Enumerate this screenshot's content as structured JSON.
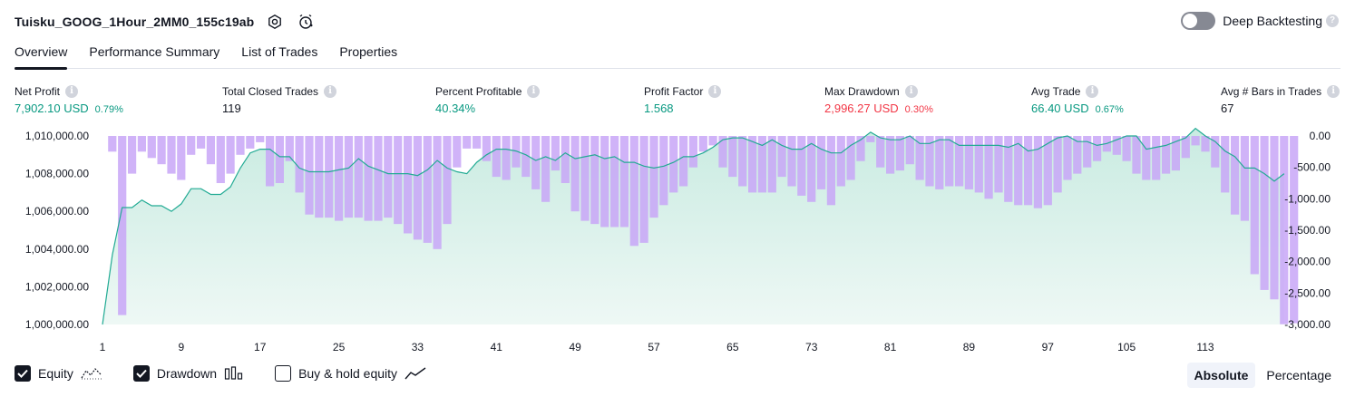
{
  "header": {
    "title": "Tuisku_GOOG_1Hour_2MM0_155c19ab",
    "icons": [
      "settings-icon",
      "alert-clock-icon"
    ]
  },
  "deep_backtesting": {
    "label": "Deep Backtesting",
    "enabled": false,
    "help": "?"
  },
  "tabs": [
    {
      "label": "Overview",
      "active": true
    },
    {
      "label": "Performance Summary",
      "active": false
    },
    {
      "label": "List of Trades",
      "active": false
    },
    {
      "label": "Properties",
      "active": false
    }
  ],
  "metrics": {
    "net_profit": {
      "label": "Net Profit",
      "value": "7,902.10 USD",
      "pct": "0.79%"
    },
    "total_closed_trades": {
      "label": "Total Closed Trades",
      "value": "119"
    },
    "percent_profitable": {
      "label": "Percent Profitable",
      "value": "40.34%"
    },
    "profit_factor": {
      "label": "Profit Factor",
      "value": "1.568"
    },
    "max_drawdown": {
      "label": "Max Drawdown",
      "value": "2,996.27 USD",
      "pct": "0.30%"
    },
    "avg_trade": {
      "label": "Avg Trade",
      "value": "66.40 USD",
      "pct": "0.67%"
    },
    "avg_bars": {
      "label": "Avg # Bars in Trades",
      "value": "67"
    },
    "info_glyph": "i"
  },
  "colors": {
    "equity_line": "#22ab94",
    "equity_fill_top": "#c9ebe1",
    "drawdown_bar": "#c8a6f7",
    "positive": "#089981",
    "negative": "#f23645"
  },
  "chart_data": {
    "type": "area",
    "x_ticks": [
      "1",
      "9",
      "17",
      "25",
      "33",
      "41",
      "49",
      "57",
      "65",
      "73",
      "81",
      "89",
      "97",
      "105",
      "113"
    ],
    "x_range": [
      1,
      120
    ],
    "left_axis": {
      "ticks": [
        "1,010,000.00",
        "1,008,000.00",
        "1,006,000.00",
        "1,004,000.00",
        "1,002,000.00",
        "1,000,000.00"
      ],
      "range": [
        1000000,
        1010000
      ]
    },
    "right_axis": {
      "ticks": [
        "0.00",
        "-500.00",
        "-1,000.00",
        "-1,500.00",
        "-2,000.00",
        "-2,500.00",
        "-3,000.00"
      ],
      "range": [
        -3000,
        0
      ]
    },
    "series": [
      {
        "name": "Equity",
        "type": "area",
        "values": [
          1000000,
          1003700,
          1006200,
          1006200,
          1006600,
          1006300,
          1006300,
          1006000,
          1006400,
          1007200,
          1007200,
          1006900,
          1006900,
          1007300,
          1008300,
          1009100,
          1009300,
          1009300,
          1008900,
          1008900,
          1008300,
          1008100,
          1008100,
          1008100,
          1008200,
          1008300,
          1008800,
          1008400,
          1008200,
          1008000,
          1008000,
          1008000,
          1007900,
          1008200,
          1008700,
          1008300,
          1008100,
          1008000,
          1008600,
          1009000,
          1009300,
          1009300,
          1009200,
          1009000,
          1008700,
          1008900,
          1008700,
          1009100,
          1008800,
          1008900,
          1009000,
          1008800,
          1008900,
          1008600,
          1008600,
          1008400,
          1008300,
          1008400,
          1008600,
          1008900,
          1008900,
          1009100,
          1009400,
          1009800,
          1009900,
          1009900,
          1009700,
          1009500,
          1009800,
          1009500,
          1009300,
          1009300,
          1009600,
          1009300,
          1009100,
          1009100,
          1009500,
          1009800,
          1010200,
          1009900,
          1009800,
          1009800,
          1010000,
          1009600,
          1009600,
          1009800,
          1009800,
          1009500,
          1009500,
          1009500,
          1009500,
          1009500,
          1009400,
          1009600,
          1009200,
          1009300,
          1009600,
          1009900,
          1010000,
          1009700,
          1009700,
          1009500,
          1009600,
          1009800,
          1010000,
          1010000,
          1009300,
          1009400,
          1009500,
          1009700,
          1009900,
          1010400,
          1010000,
          1009700,
          1009200,
          1008900,
          1008300,
          1008300,
          1008000,
          1007600,
          1008000
        ]
      },
      {
        "name": "Drawdown",
        "type": "bar",
        "values": [
          -250,
          -2850,
          -600,
          -250,
          -350,
          -450,
          -600,
          -700,
          -300,
          -200,
          -450,
          -750,
          -600,
          -300,
          -200,
          -100,
          -800,
          -750,
          -400,
          -900,
          -1250,
          -1300,
          -1300,
          -1350,
          -1300,
          -1300,
          -1350,
          -1350,
          -1300,
          -1400,
          -1550,
          -1650,
          -1700,
          -1800,
          -1400,
          -500,
          -200,
          -200,
          -400,
          -650,
          -700,
          -500,
          -650,
          -850,
          -1050,
          -550,
          -750,
          -1200,
          -1350,
          -1400,
          -1450,
          -1450,
          -1450,
          -1750,
          -1700,
          -1300,
          -1100,
          -900,
          -800,
          -500,
          -250,
          -150,
          -500,
          -650,
          -800,
          -900,
          -900,
          -900,
          -650,
          -800,
          -950,
          -1050,
          -850,
          -1100,
          -800,
          -700,
          -400,
          -100,
          -500,
          -600,
          -550,
          -450,
          -700,
          -800,
          -850,
          -800,
          -800,
          -850,
          -900,
          -1000,
          -900,
          -1050,
          -1100,
          -1100,
          -1150,
          -1100,
          -900,
          -700,
          -600,
          -500,
          -400,
          -250,
          -300,
          -400,
          -600,
          -700,
          -700,
          -600,
          -550,
          -350,
          -150,
          -250,
          -500,
          -900,
          -1250,
          -1350,
          -2200,
          -2450,
          -2600,
          -2996,
          -2980
        ]
      }
    ]
  },
  "legend": [
    {
      "label": "Equity",
      "checked": true,
      "glyph": "equity-line-icon"
    },
    {
      "label": "Drawdown",
      "checked": true,
      "glyph": "drawdown-bars-icon"
    },
    {
      "label": "Buy & hold equity",
      "checked": false,
      "glyph": "buy-hold-line-icon"
    }
  ],
  "mode": {
    "absolute": "Absolute",
    "percentage": "Percentage",
    "selected": "absolute"
  }
}
